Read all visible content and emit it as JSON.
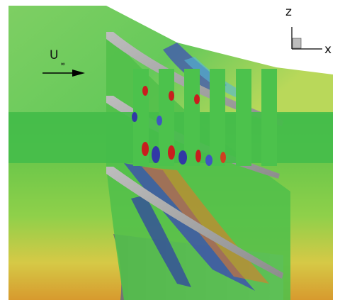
{
  "figure": {
    "freestream_label": "U",
    "freestream_subscript": "∞",
    "axis_z_label": "z",
    "axis_x_label": "x"
  },
  "colors": {
    "background": "#ffffff",
    "low_field": "#3a3fb0",
    "mid_field": "#3fbf4a",
    "high_field": "#c82020",
    "blade_surface": "#9a9a9a"
  }
}
